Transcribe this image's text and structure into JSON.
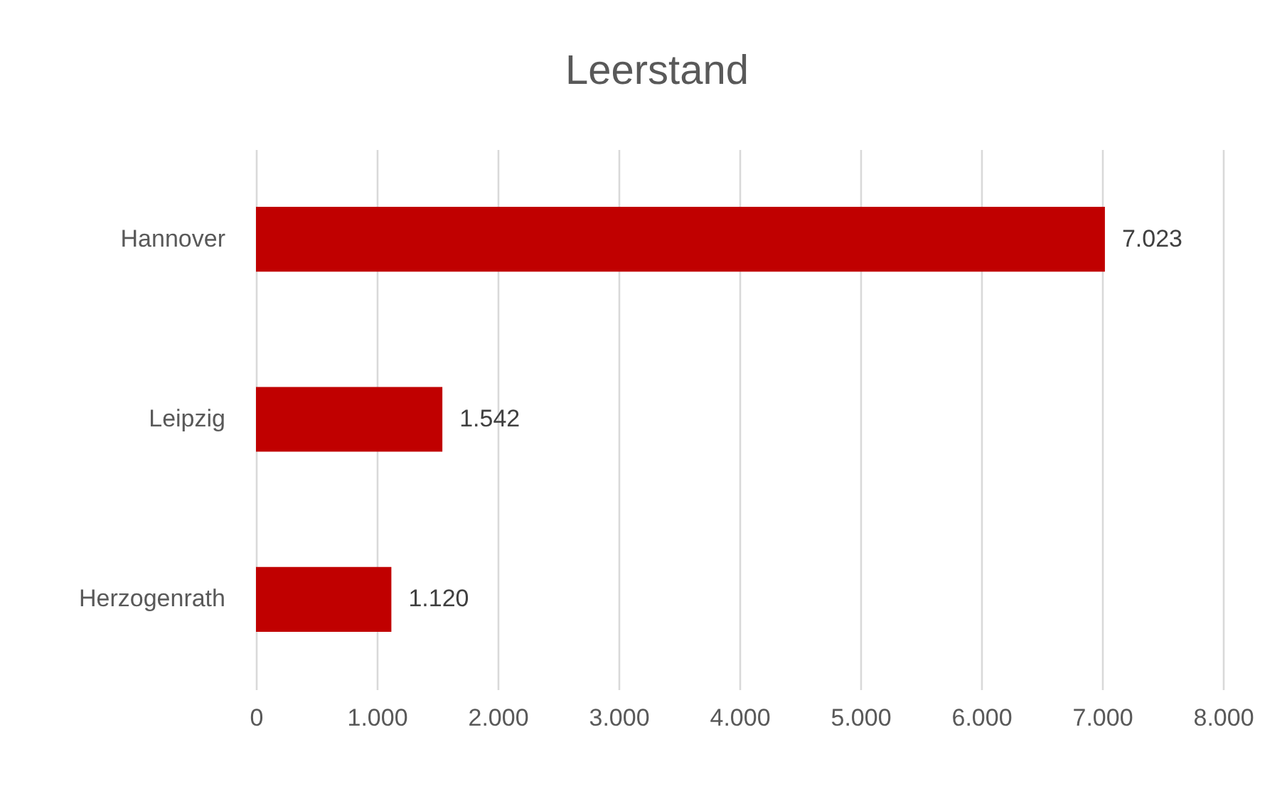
{
  "chart_data": {
    "type": "bar",
    "orientation": "horizontal",
    "title": "Leerstand",
    "categories": [
      "Hannover",
      "Leipzig",
      "Herzogenrath"
    ],
    "values": [
      7023,
      1542,
      1120
    ],
    "value_labels": [
      "7.023",
      "1.542",
      "1.120"
    ],
    "color": "#c00000",
    "xlim": [
      0,
      8000
    ],
    "xticks": [
      0,
      {
        "value": 1000,
        "label": "1.000"
      },
      {
        "value": 2000,
        "label": "2.000"
      },
      {
        "value": 3000,
        "label": "3.000"
      },
      {
        "value": 4000,
        "label": "4.000"
      },
      {
        "value": 5000,
        "label": "5.000"
      },
      {
        "value": 6000,
        "label": "6.000"
      },
      {
        "value": 7000,
        "label": "7.000"
      },
      {
        "value": 8000,
        "label": "8.000"
      }
    ],
    "grid": "x"
  }
}
